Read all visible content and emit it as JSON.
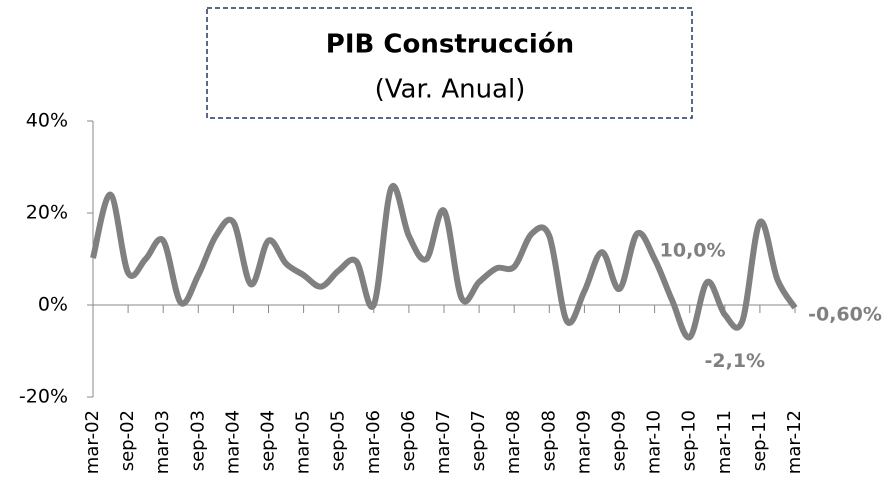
{
  "chart_data": {
    "type": "line",
    "title": "PIB Construcción",
    "subtitle": "(Var. Anual)",
    "categories": [
      "mar-02",
      null,
      "sep-02",
      null,
      "mar-03",
      null,
      "sep-03",
      null,
      "mar-04",
      null,
      "sep-04",
      null,
      "mar-05",
      null,
      "sep-05",
      null,
      "mar-06",
      null,
      "sep-06",
      null,
      "mar-07",
      null,
      "sep-07",
      null,
      "mar-08",
      null,
      "sep-08",
      null,
      "mar-09",
      null,
      "sep-09",
      null,
      "mar-10",
      null,
      "sep-10",
      null,
      "mar-11",
      null,
      "sep-11",
      null,
      "mar-12"
    ],
    "series": [
      {
        "name": "PIB Construcción",
        "color": "#808080",
        "values": [
          10.2,
          24,
          7,
          10,
          14,
          0.5,
          6.5,
          15,
          18,
          4.5,
          14,
          9,
          6.5,
          4,
          7.5,
          9.5,
          0,
          25.5,
          15,
          10,
          20.5,
          1.5,
          5,
          8,
          8.3,
          15.5,
          15,
          -3.5,
          3,
          11.5,
          3.5,
          15.5,
          10.0,
          1,
          -7,
          5,
          -2.1,
          -3.5,
          18,
          5.5,
          -0.6
        ],
        "value_labels": [
          null,
          null,
          null,
          null,
          null,
          null,
          null,
          null,
          null,
          null,
          null,
          null,
          null,
          null,
          null,
          null,
          null,
          null,
          null,
          null,
          null,
          null,
          null,
          null,
          null,
          null,
          null,
          null,
          null,
          null,
          null,
          null,
          "10,0%",
          null,
          null,
          null,
          "-2,1%",
          null,
          null,
          null,
          "-0,60%"
        ]
      }
    ],
    "ylim": [
      -20,
      40
    ],
    "yticks": [
      {
        "value": -20,
        "label": "-20%"
      },
      {
        "value": 0,
        "label": "0%"
      },
      {
        "value": 20,
        "label": "20%"
      },
      {
        "value": 40,
        "label": "40%"
      }
    ]
  }
}
